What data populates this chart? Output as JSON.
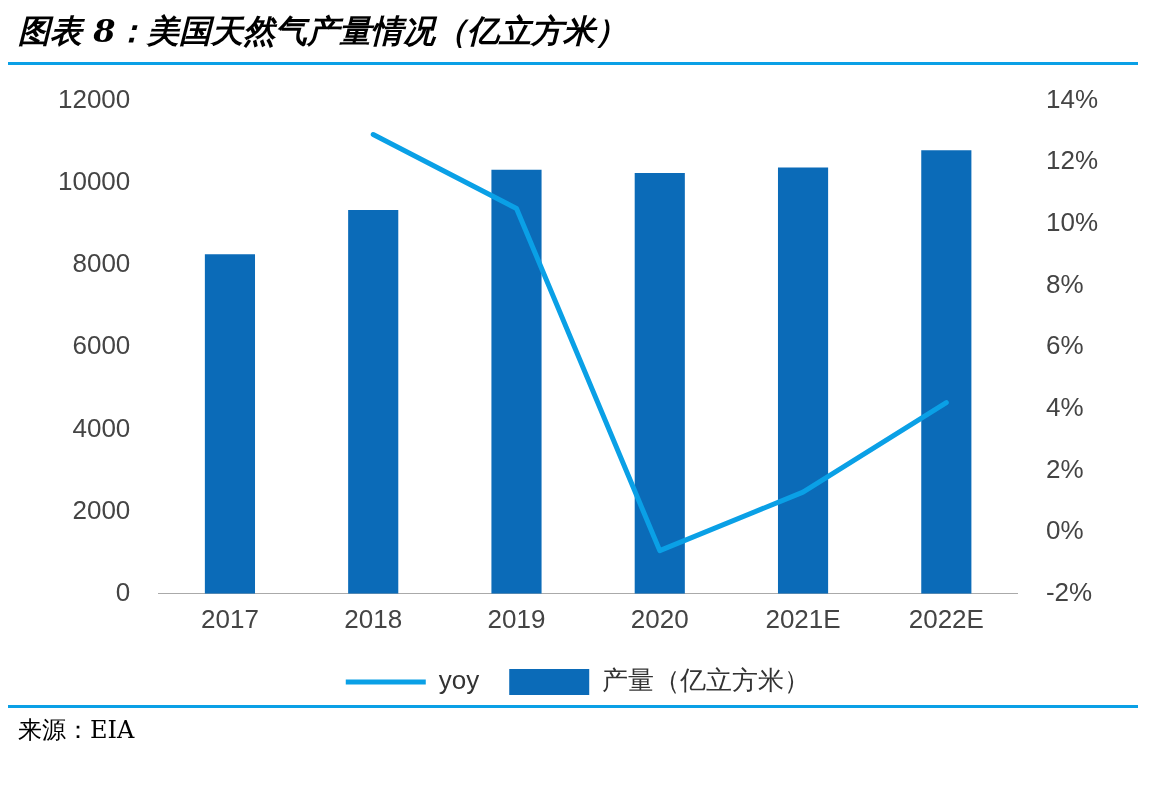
{
  "chart_data": {
    "type": "bar",
    "title": "图表 8：美国天然气产量情况（亿立方米）",
    "categories": [
      "2017",
      "2018",
      "2019",
      "2020",
      "2021E",
      "2022E"
    ],
    "series": [
      {
        "name": "产量（亿立方米）",
        "color": "#0b6bb8",
        "values": [
          8260,
          9340,
          10320,
          10240,
          10370,
          10790
        ]
      },
      {
        "name": "yoy",
        "type": "line",
        "axis": "y2",
        "color": "#0aa0e6",
        "values": [
          null,
          12.9,
          10.5,
          -0.6,
          1.3,
          4.2
        ]
      }
    ],
    "ylim": [
      0,
      12000
    ],
    "yticks": [
      0,
      2000,
      4000,
      6000,
      8000,
      10000,
      12000
    ],
    "y2lim": [
      -2,
      14
    ],
    "y2ticks": [
      {
        "value": -2,
        "label": "-2%"
      },
      {
        "value": 0,
        "label": "0%"
      },
      {
        "value": 2,
        "label": "2%"
      },
      {
        "value": 4,
        "label": "4%"
      },
      {
        "value": 6,
        "label": "6%"
      },
      {
        "value": 8,
        "label": "8%"
      },
      {
        "value": 10,
        "label": "10%"
      },
      {
        "value": 12,
        "label": "12%"
      },
      {
        "value": 14,
        "label": "14%"
      }
    ],
    "grid": false,
    "legend": "bottom",
    "marker": "none",
    "line_style": "solid",
    "annotations": [
      "来源：EIA"
    ]
  }
}
